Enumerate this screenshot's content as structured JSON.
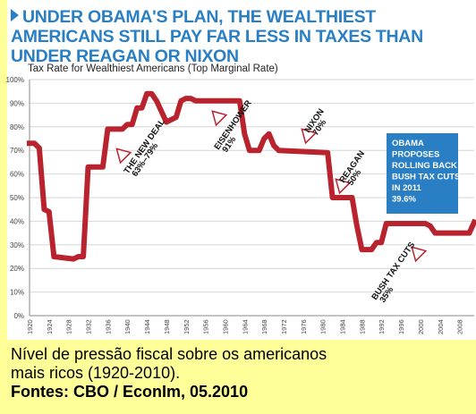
{
  "headline": "UNDER OBAMA'S PLAN, THE WEALTHIEST AMERICANS STILL PAY FAR LESS IN TAXES THAN UNDER REAGAN OR NIXON",
  "caption": {
    "line1": "Nível de pressão fiscal sobre os americanos",
    "line2": "mais ricos (1920-2010).",
    "line3": "Fontes: CBO / EconIm, 05.2010"
  },
  "colors": {
    "line": "#b8232d",
    "headline": "#2a7fc4",
    "callout_bg": "#2a7fc4",
    "background": "#ffff9a"
  },
  "chart_data": {
    "type": "line",
    "title": "Tax Rate for Wealthiest Americans (Top Marginal Rate)",
    "xlim": [
      1920,
      2011
    ],
    "ylim": [
      0,
      100
    ],
    "grid": true,
    "y_ticks": [
      "0%",
      "10%",
      "20%",
      "30%",
      "40%",
      "50%",
      "60%",
      "70%",
      "80%",
      "90%",
      "100%"
    ],
    "x_ticks": [
      "1920",
      "1924",
      "1928",
      "1932",
      "1936",
      "1940",
      "1944",
      "1948",
      "1952",
      "1956",
      "1960",
      "1964",
      "1968",
      "1972",
      "1976",
      "1980",
      "1984",
      "1988",
      "1992",
      "1996",
      "2000",
      "2004",
      "2008"
    ],
    "series": [
      {
        "x": [
          1920,
          1921,
          1922,
          1923,
          1924,
          1925,
          1929,
          1930,
          1931,
          1932,
          1935,
          1936,
          1939,
          1940,
          1941,
          1942,
          1943,
          1944,
          1945,
          1946,
          1948,
          1950,
          1951,
          1952,
          1953,
          1954,
          1963,
          1964,
          1965,
          1967,
          1968,
          1969,
          1970,
          1971,
          1981,
          1982,
          1986,
          1987,
          1988,
          1990,
          1991,
          1992,
          1993,
          2000,
          2001,
          2002,
          2003,
          2009,
          2010,
          2011
        ],
        "values": [
          73,
          73,
          71,
          45,
          44,
          25,
          24,
          25,
          25,
          63,
          63,
          79,
          79,
          81,
          81,
          88,
          88,
          94,
          94,
          91,
          82,
          84,
          91,
          92,
          92,
          91,
          91,
          77,
          70,
          70,
          75,
          77,
          72,
          70,
          69,
          50,
          50,
          38,
          28,
          28,
          31,
          31,
          39,
          39,
          39,
          38,
          35,
          35,
          35,
          39.6
        ]
      }
    ],
    "annotations": [
      {
        "label": "THE NEW DEAL",
        "value": "63%–79%"
      },
      {
        "label": "EISENHOWER",
        "value": "91%"
      },
      {
        "label": "NIXON",
        "value": "70%"
      },
      {
        "label": "REAGAN",
        "value": "50%"
      },
      {
        "label": "BUSH TAX CUTS",
        "value": "35%"
      }
    ],
    "callout": {
      "lines": [
        "OBAMA",
        "PROPOSES",
        "ROLLING BACK",
        "BUSH TAX CUTS",
        "IN 2011"
      ],
      "value": "39.6%"
    }
  }
}
